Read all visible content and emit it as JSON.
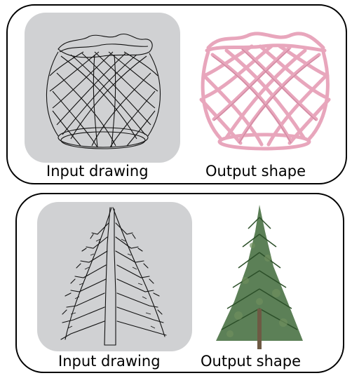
{
  "panels": [
    {
      "input_caption": "Input drawing",
      "output_caption": "Output shape",
      "output_color": "#e8a6bc"
    },
    {
      "input_caption": "Input drawing",
      "output_caption": "Output shape",
      "output_color": "#3f6a3a"
    }
  ]
}
